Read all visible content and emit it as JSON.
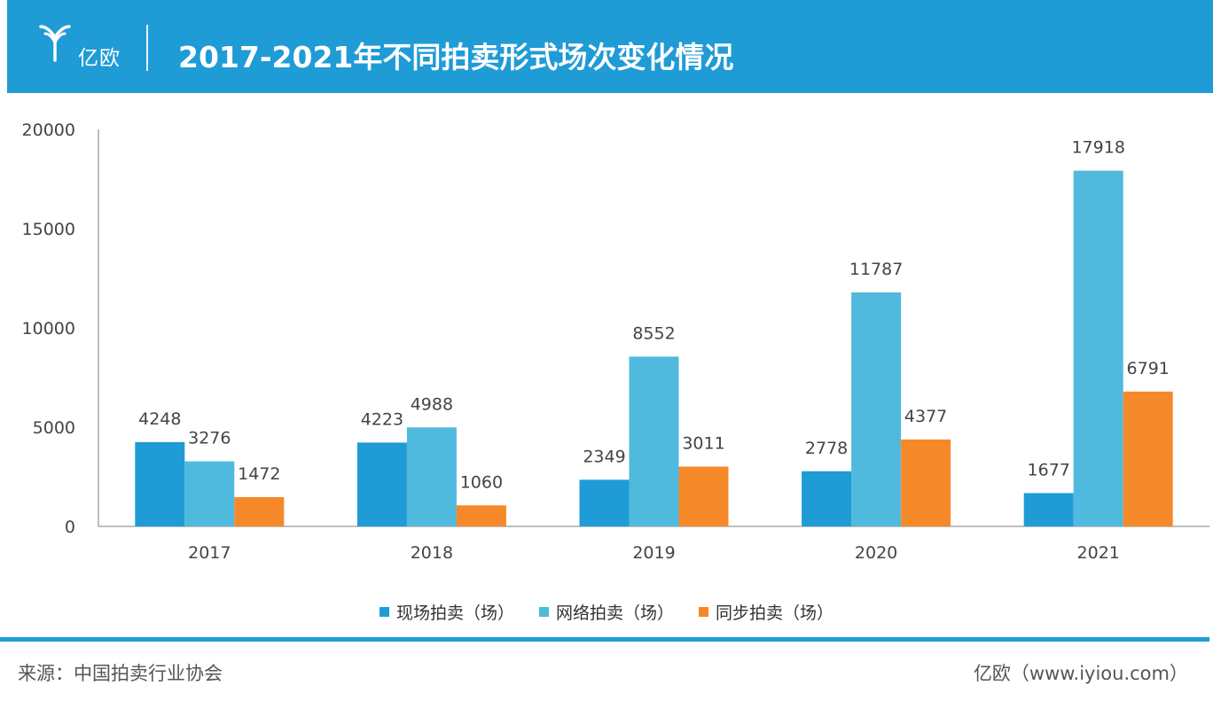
{
  "header": {
    "logo_text": "亿欧",
    "title": "2017-2021年不同拍卖形式场次变化情况"
  },
  "chart_data": {
    "type": "bar",
    "title": "2017-2021年不同拍卖形式场次变化情况",
    "categories": [
      "2017",
      "2018",
      "2019",
      "2020",
      "2021"
    ],
    "series": [
      {
        "name": "现场拍卖（场）",
        "color": "#1f9bd6",
        "values": [
          4248,
          4223,
          2349,
          2778,
          1677
        ]
      },
      {
        "name": "网络拍卖（场）",
        "color": "#4fbadd",
        "values": [
          3276,
          4988,
          8552,
          11787,
          17918
        ]
      },
      {
        "name": "同步拍卖（场）",
        "color": "#f5892a",
        "values": [
          1472,
          1060,
          3011,
          4377,
          6791
        ]
      }
    ],
    "y_ticks": [
      "0",
      "5000",
      "10000",
      "15000",
      "20000"
    ],
    "ylim": [
      0,
      20000
    ],
    "xlabel": "",
    "ylabel": "",
    "grid": false,
    "legend_position": "bottom",
    "data_labels": true
  },
  "footer": {
    "source": "来源：中国拍卖行业协会",
    "site": "亿欧（www.iyiou.com）"
  }
}
